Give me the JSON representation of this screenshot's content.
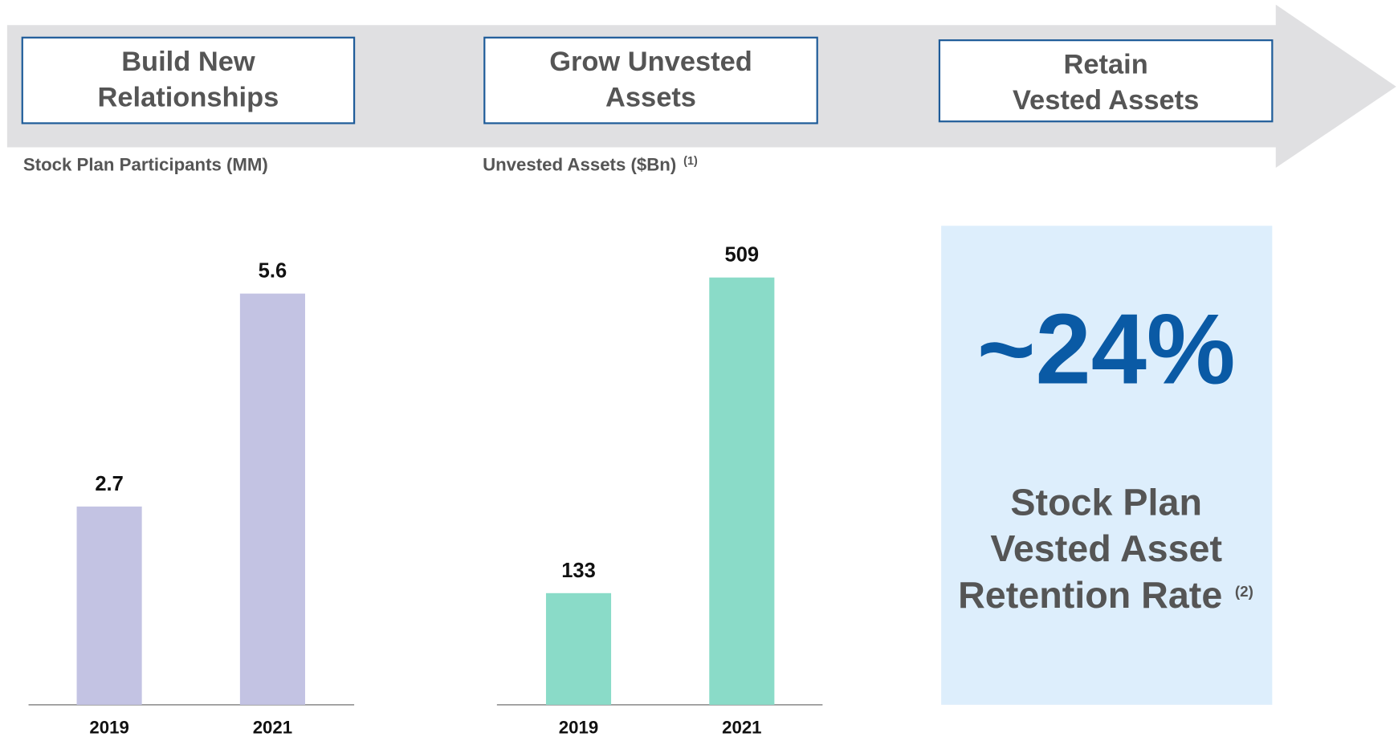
{
  "stages": [
    {
      "lines": [
        "Build New",
        "Relationships"
      ]
    },
    {
      "lines": [
        "Grow Unvested",
        "Assets"
      ]
    },
    {
      "lines": [
        "Retain",
        "Vested Assets"
      ]
    }
  ],
  "chart_data": [
    {
      "type": "bar",
      "title": "Stock Plan Participants (MM)",
      "categories": [
        "2019",
        "2021"
      ],
      "values": [
        2.7,
        5.6
      ],
      "color": "#c3c3e3"
    },
    {
      "type": "bar",
      "title": "Unvested Assets ($Bn)",
      "title_note": "(1)",
      "categories": [
        "2019",
        "2021"
      ],
      "values": [
        133,
        509
      ],
      "color": "#8adbc8"
    }
  ],
  "highlight": {
    "value": "~24%",
    "label_lines": [
      "Stock Plan",
      "Vested Asset",
      "Retention Rate"
    ],
    "note": "(2)"
  }
}
